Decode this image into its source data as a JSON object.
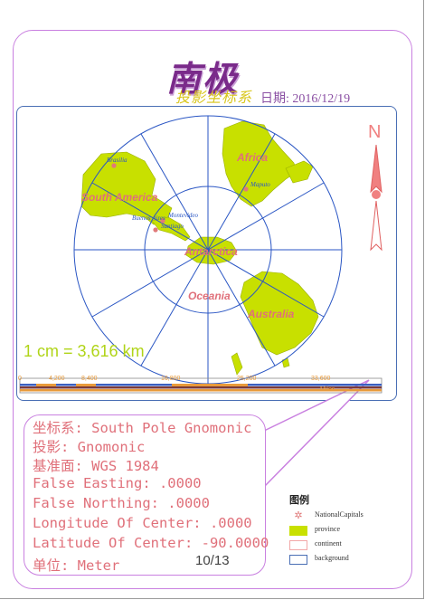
{
  "title": "南极",
  "subtitle": "投影坐标系",
  "date": "日期: 2016/12/19",
  "north_label": "N",
  "scale_text": "1 cm = 3,616 km",
  "scale_bar": {
    "ticks": [
      "0",
      "4,200",
      "8,400",
      "16,800",
      "25,200",
      "33,600"
    ],
    "unit": "Miles"
  },
  "map_labels": {
    "south_america": "South America",
    "africa": "Africa",
    "antarctica": "Antarctica",
    "oceania": "Oceania",
    "australia": "Australia"
  },
  "cities": {
    "brasilia": "Brasilia",
    "maputo": "Maputo",
    "buenos_aires": "Buenos Aires",
    "montevideo": "Montevideo",
    "santiago": "Santiago"
  },
  "projection_info": [
    "坐标系: South Pole Gnomonic",
    "投影: Gnomonic",
    "基准面: WGS 1984",
    "False Easting: .0000",
    "False Northing: .0000",
    "Longitude Of Center: .0000",
    "Latitude Of Center: -90.0000",
    "单位: Meter"
  ],
  "page_number": "10/13",
  "legend": {
    "title": "图例",
    "items": [
      {
        "label": "NationalCapitals",
        "symbol": "capital-star",
        "color": "#e07a7a"
      },
      {
        "label": "province",
        "symbol": "fill",
        "color": "#c8e000"
      },
      {
        "label": "continent",
        "symbol": "outline",
        "color": "#f2a8a8"
      },
      {
        "label": "background",
        "symbol": "outline",
        "color": "#4a6fb5"
      }
    ]
  },
  "colors": {
    "land": "#c8e000",
    "graticule": "#2a56c4",
    "label_pink": "#e0707a",
    "title_purple": "#7a2a8a",
    "border_purple": "#c980e0",
    "city_blue": "#2a56c4"
  }
}
